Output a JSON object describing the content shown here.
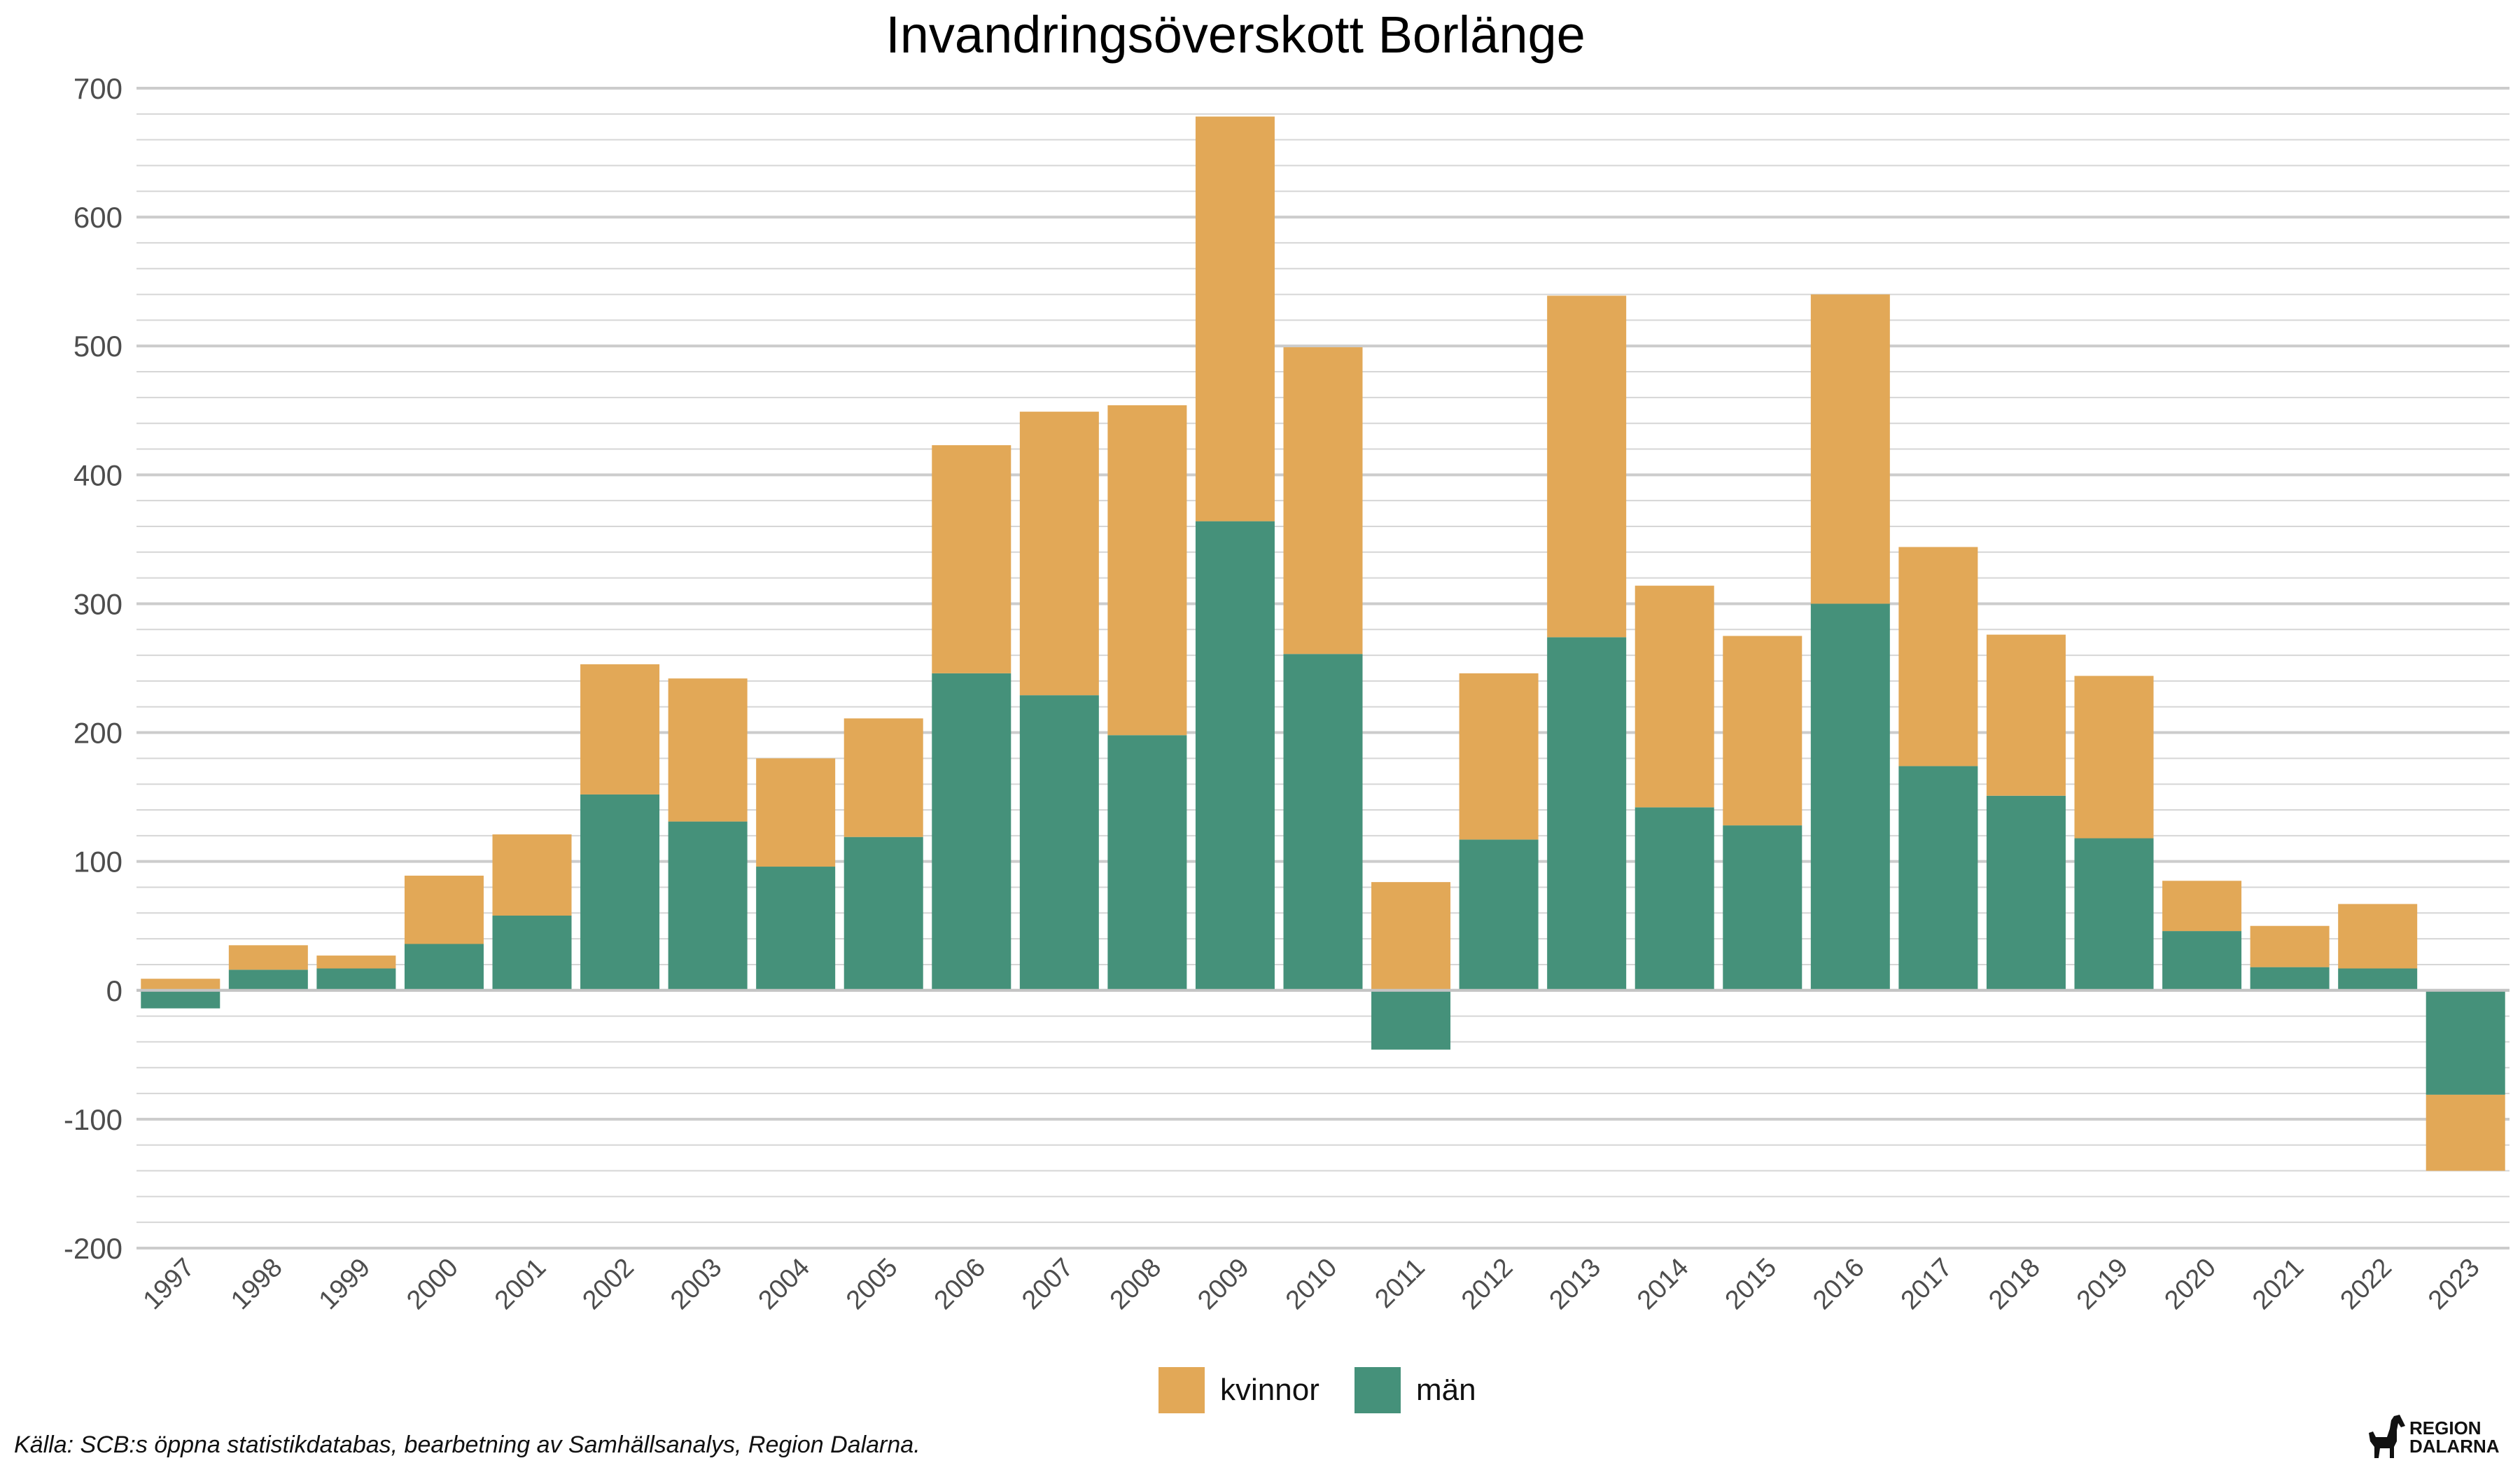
{
  "chart_data": {
    "type": "bar",
    "stacked": true,
    "title": "Invandringsöverskott Borlänge",
    "xlabel": "",
    "ylabel": "",
    "ylim": [
      -200,
      700
    ],
    "yticks": [
      -200,
      -100,
      0,
      100,
      200,
      300,
      400,
      500,
      600,
      700
    ],
    "grid": true,
    "legend": "bottom",
    "categories": [
      "1997",
      "1998",
      "1999",
      "2000",
      "2001",
      "2002",
      "2003",
      "2004",
      "2005",
      "2006",
      "2007",
      "2008",
      "2009",
      "2010",
      "2011",
      "2012",
      "2013",
      "2014",
      "2015",
      "2016",
      "2017",
      "2018",
      "2019",
      "2020",
      "2021",
      "2022",
      "2023"
    ],
    "series": [
      {
        "name": "män",
        "color": "#45917A",
        "values": [
          -14,
          16,
          17,
          36,
          58,
          152,
          131,
          96,
          119,
          246,
          229,
          198,
          364,
          261,
          -46,
          117,
          274,
          142,
          128,
          300,
          174,
          151,
          118,
          46,
          18,
          17,
          -81
        ]
      },
      {
        "name": "kvinnor",
        "color": "#E2A857",
        "values": [
          9,
          19,
          10,
          53,
          63,
          101,
          111,
          84,
          92,
          177,
          220,
          256,
          314,
          238,
          84,
          129,
          265,
          172,
          147,
          240,
          170,
          125,
          126,
          39,
          32,
          50,
          -59
        ]
      }
    ],
    "legend_order": [
      "kvinnor",
      "män"
    ]
  },
  "caption": "Källa: SCB:s öppna statistikdatabas, bearbetning av Samhällsanalys, Region Dalarna.",
  "logo": {
    "line1": "REGION",
    "line2": "DALARNA"
  }
}
